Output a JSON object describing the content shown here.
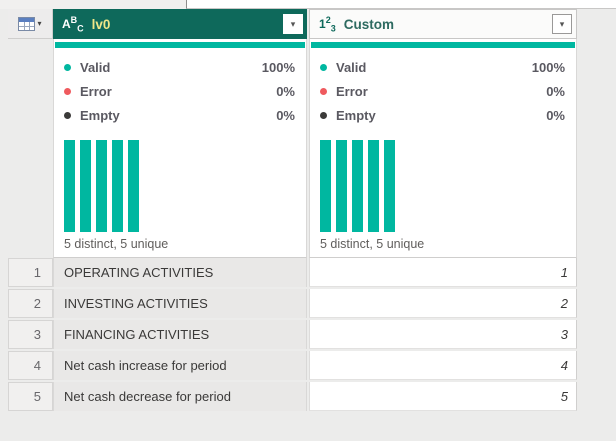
{
  "app": "Power Query data preview",
  "icons": {
    "dropdown": "▾",
    "text_type": {
      "a": "A",
      "b": "B",
      "c": "C"
    },
    "number_type": {
      "one": "1",
      "two": "2",
      "three": "3"
    }
  },
  "header": {
    "columns": [
      {
        "label": "lv0",
        "type": "text",
        "selected": true
      },
      {
        "label": "Custom",
        "type": "whole-number",
        "selected": false
      }
    ]
  },
  "profile": {
    "valid_label": "Valid",
    "error_label": "Error",
    "empty_label": "Empty",
    "columns": [
      {
        "valid": "100%",
        "error": "0%",
        "empty": "0%",
        "distinct": "5 distinct, 5 unique",
        "bar_count": 5
      },
      {
        "valid": "100%",
        "error": "0%",
        "empty": "0%",
        "distinct": "5 distinct, 5 unique",
        "bar_count": 5
      }
    ]
  },
  "rows": [
    {
      "num": "1",
      "lv0": "OPERATING ACTIVITIES",
      "custom": "1"
    },
    {
      "num": "2",
      "lv0": "INVESTING ACTIVITIES",
      "custom": "2"
    },
    {
      "num": "3",
      "lv0": "FINANCING ACTIVITIES",
      "custom": "3"
    },
    {
      "num": "4",
      "lv0": "Net cash increase for period",
      "custom": "4"
    },
    {
      "num": "5",
      "lv0": "Net cash decrease for period",
      "custom": "5"
    }
  ],
  "colors": {
    "selected_header_teal": "#0e695b",
    "quality_accent_teal": "#00b7a0",
    "error_red": "#ef5a5e",
    "empty_dark": "#3b3a39",
    "header_label_yellow": "#efe788",
    "canvas": "#ececeb"
  }
}
